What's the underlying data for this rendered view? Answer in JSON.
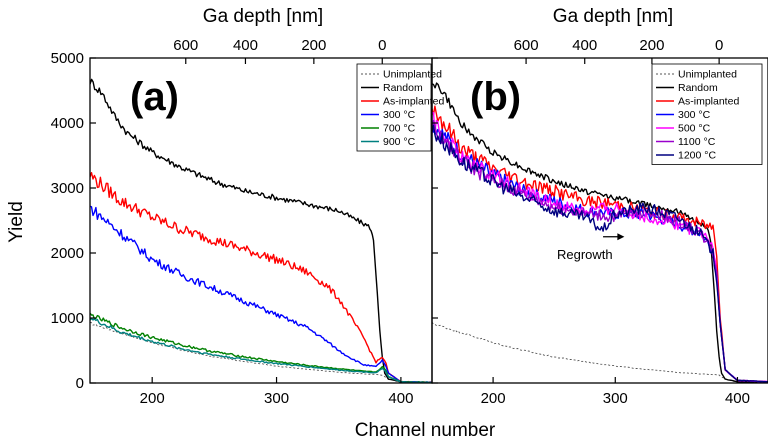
{
  "figure": {
    "xlabel": "Channel number",
    "ylabel": "Yield",
    "top_xlabel": "Ga depth [nm]"
  },
  "chart_data": [
    {
      "type": "line",
      "panel_label": "(a)",
      "xlabel": "Channel number",
      "ylabel": "Yield",
      "top_xlabel": "Ga depth [nm]",
      "xlim": [
        150,
        425
      ],
      "ylim": [
        0,
        5000
      ],
      "x_ticks": [
        200,
        300,
        400
      ],
      "y_ticks": [
        0,
        1000,
        2000,
        3000,
        4000,
        5000
      ],
      "top_ticks": [
        {
          "label": "600",
          "channel": 227
        },
        {
          "label": "400",
          "channel": 275
        },
        {
          "label": "200",
          "channel": 330
        },
        {
          "label": "0",
          "channel": 385
        }
      ],
      "grid": false,
      "legend_position": "top-right",
      "series": [
        {
          "name": "Unimplanted",
          "color": "#555555",
          "dashed": true,
          "x": [
            150,
            175,
            200,
            225,
            250,
            275,
            300,
            325,
            350,
            370,
            380,
            385,
            390,
            400,
            425
          ],
          "y": [
            920,
            770,
            620,
            500,
            400,
            330,
            260,
            210,
            165,
            140,
            130,
            120,
            60,
            10,
            5
          ]
        },
        {
          "name": "Random",
          "color": "#000000",
          "x": [
            150,
            160,
            170,
            180,
            190,
            200,
            225,
            250,
            275,
            300,
            325,
            350,
            375,
            378,
            381,
            383,
            385,
            387,
            390,
            400,
            425
          ],
          "y": [
            4650,
            4450,
            4100,
            3850,
            3700,
            3550,
            3300,
            3100,
            2950,
            2850,
            2750,
            2650,
            2400,
            2200,
            1400,
            800,
            400,
            150,
            60,
            20,
            10
          ]
        },
        {
          "name": "As-implanted",
          "color": "#ff0000",
          "x": [
            150,
            175,
            200,
            225,
            250,
            275,
            300,
            325,
            340,
            350,
            360,
            370,
            375,
            380,
            385,
            388,
            390,
            400,
            425
          ],
          "y": [
            3200,
            2800,
            2550,
            2350,
            2200,
            2050,
            1900,
            1700,
            1500,
            1300,
            1000,
            700,
            500,
            320,
            400,
            300,
            150,
            20,
            10
          ]
        },
        {
          "name": "300 °C",
          "color": "#0000ff",
          "x": [
            150,
            175,
            200,
            225,
            250,
            275,
            300,
            325,
            340,
            350,
            360,
            370,
            380,
            385,
            388,
            390,
            400,
            425
          ],
          "y": [
            2700,
            2300,
            1900,
            1650,
            1450,
            1250,
            1050,
            850,
            650,
            500,
            380,
            280,
            250,
            350,
            250,
            150,
            20,
            10
          ]
        },
        {
          "name": "700 °C",
          "color": "#008000",
          "x": [
            150,
            175,
            200,
            225,
            250,
            275,
            300,
            325,
            350,
            370,
            380,
            385,
            388,
            390,
            400,
            425
          ],
          "y": [
            1050,
            850,
            700,
            580,
            480,
            400,
            330,
            270,
            220,
            180,
            170,
            250,
            190,
            100,
            20,
            10
          ]
        },
        {
          "name": "900 °C",
          "color": "#008080",
          "x": [
            150,
            175,
            200,
            225,
            250,
            275,
            300,
            325,
            350,
            370,
            380,
            385,
            388,
            390,
            400,
            425
          ],
          "y": [
            1000,
            780,
            640,
            520,
            430,
            360,
            300,
            250,
            200,
            170,
            160,
            220,
            170,
            90,
            15,
            5
          ]
        }
      ]
    },
    {
      "type": "line",
      "panel_label": "(b)",
      "xlabel": "Channel number",
      "ylabel": "Yield",
      "top_xlabel": "Ga depth [nm]",
      "xlim": [
        150,
        425
      ],
      "ylim": [
        0,
        5000
      ],
      "x_ticks": [
        200,
        300,
        400
      ],
      "y_ticks": [
        0,
        1000,
        2000,
        3000,
        4000,
        5000
      ],
      "top_ticks": [
        {
          "label": "600",
          "channel": 227
        },
        {
          "label": "400",
          "channel": 275
        },
        {
          "label": "200",
          "channel": 330
        },
        {
          "label": "0",
          "channel": 385
        }
      ],
      "grid": false,
      "legend_position": "top-right",
      "annotation": {
        "text": "Regrowth",
        "arrow_from": [
          290,
          2250
        ],
        "arrow_to": [
          305,
          2250
        ]
      },
      "series": [
        {
          "name": "Unimplanted",
          "color": "#555555",
          "dashed": true,
          "x": [
            150,
            175,
            200,
            225,
            250,
            275,
            300,
            325,
            350,
            370,
            380,
            385,
            390,
            400,
            425
          ],
          "y": [
            920,
            770,
            620,
            500,
            400,
            330,
            260,
            210,
            165,
            140,
            130,
            120,
            60,
            10,
            5
          ]
        },
        {
          "name": "Random",
          "color": "#000000",
          "x": [
            150,
            160,
            170,
            180,
            190,
            200,
            225,
            250,
            275,
            300,
            325,
            350,
            375,
            378,
            381,
            383,
            385,
            387,
            390,
            400,
            425
          ],
          "y": [
            4650,
            4450,
            4100,
            3850,
            3700,
            3550,
            3300,
            3100,
            2950,
            2850,
            2750,
            2650,
            2400,
            2200,
            1400,
            800,
            400,
            150,
            60,
            20,
            10
          ]
        },
        {
          "name": "As-implanted",
          "color": "#ff0000",
          "x": [
            150,
            175,
            200,
            225,
            250,
            275,
            300,
            325,
            350,
            370,
            380,
            383,
            386,
            390,
            400,
            425
          ],
          "y": [
            4250,
            3600,
            3300,
            3100,
            2950,
            2800,
            2750,
            2650,
            2550,
            2450,
            2400,
            2000,
            1000,
            200,
            40,
            20
          ]
        },
        {
          "name": "300 °C",
          "color": "#0000ff",
          "x": [
            150,
            175,
            200,
            225,
            250,
            275,
            300,
            325,
            350,
            370,
            380,
            383,
            386,
            390,
            400,
            425
          ],
          "y": [
            4000,
            3500,
            3200,
            2950,
            2800,
            2650,
            2600,
            2600,
            2450,
            2300,
            2050,
            1700,
            900,
            200,
            40,
            20
          ]
        },
        {
          "name": "500 °C",
          "color": "#ff00ff",
          "x": [
            150,
            175,
            200,
            225,
            250,
            275,
            300,
            325,
            350,
            370,
            380,
            383,
            386,
            390,
            400,
            425
          ],
          "y": [
            4050,
            3450,
            3200,
            2950,
            2750,
            2650,
            2700,
            2550,
            2450,
            2300,
            2100,
            1700,
            900,
            200,
            40,
            20
          ]
        },
        {
          "name": "1100 °C",
          "color": "#9900cc",
          "x": [
            150,
            175,
            200,
            225,
            250,
            275,
            300,
            325,
            350,
            370,
            380,
            383,
            386,
            390,
            400,
            425
          ],
          "y": [
            3950,
            3400,
            3100,
            2900,
            2700,
            2600,
            2550,
            2650,
            2500,
            2300,
            2000,
            1700,
            900,
            200,
            40,
            20
          ]
        },
        {
          "name": "1200 °C",
          "color": "#000080",
          "x": [
            150,
            175,
            200,
            225,
            250,
            275,
            290,
            300,
            325,
            350,
            370,
            380,
            383,
            386,
            390,
            400,
            425
          ],
          "y": [
            3900,
            3400,
            3100,
            2850,
            2650,
            2550,
            2350,
            2600,
            2700,
            2550,
            2300,
            2000,
            1600,
            900,
            200,
            40,
            20
          ]
        }
      ]
    }
  ]
}
